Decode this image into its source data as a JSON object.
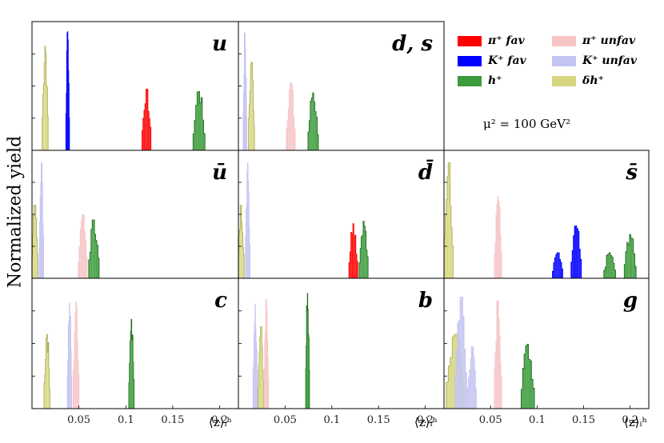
{
  "ylabel": "Normalized yield",
  "scale_label": "μ² = 100 GeV²",
  "legend": [
    {
      "label": "π⁺ fav",
      "color": "#ff0000"
    },
    {
      "label": "π⁺ unfav",
      "color": "#f6c4c4"
    },
    {
      "label": "K⁺ fav",
      "color": "#0000ff"
    },
    {
      "label": "K⁺ unfav",
      "color": "#c4c4f2"
    },
    {
      "label": "h⁺",
      "color": "#3c9b3c"
    },
    {
      "label": "δh⁺",
      "color": "#d6d680"
    }
  ],
  "chart_data": {
    "type": "histogram",
    "xlabel": "⟨z⟩ᵢʰ",
    "xlim": [
      0,
      0.22
    ],
    "x_ticks": [
      "0.05",
      "0.1",
      "0.15",
      "0.2"
    ],
    "grid": false,
    "legend_position": "top-right",
    "panels": [
      {
        "flavor": "u",
        "row": 0,
        "col": 0,
        "series": [
          {
            "name": "δh⁺",
            "center": 0.014,
            "width": 0.002,
            "height": 0.85
          },
          {
            "name": "K⁺ fav",
            "center": 0.038,
            "width": 0.0012,
            "height": 0.97
          },
          {
            "name": "π⁺ fav",
            "center": 0.122,
            "width": 0.003,
            "height": 0.5
          },
          {
            "name": "h⁺",
            "center": 0.178,
            "width": 0.004,
            "height": 0.48
          }
        ]
      },
      {
        "flavor": "d, s",
        "row": 0,
        "col": 1,
        "series": [
          {
            "name": "K⁺ unfav",
            "center": 0.007,
            "width": 0.0012,
            "height": 0.96
          },
          {
            "name": "δh⁺",
            "center": 0.014,
            "width": 0.002,
            "height": 0.72
          },
          {
            "name": "π⁺ unfav",
            "center": 0.056,
            "width": 0.003,
            "height": 0.55
          },
          {
            "name": "h⁺",
            "center": 0.08,
            "width": 0.0035,
            "height": 0.47
          }
        ]
      },
      {
        "flavor": "ū",
        "row": 1,
        "col": 0,
        "series": [
          {
            "name": "δh⁺",
            "center": 0.003,
            "width": 0.002,
            "height": 0.6
          },
          {
            "name": "K⁺ unfav",
            "center": 0.01,
            "width": 0.0015,
            "height": 0.95
          },
          {
            "name": "π⁺ unfav",
            "center": 0.054,
            "width": 0.003,
            "height": 0.52
          },
          {
            "name": "h⁺",
            "center": 0.066,
            "width": 0.0035,
            "height": 0.48
          }
        ]
      },
      {
        "flavor": "d̄",
        "row": 1,
        "col": 1,
        "series": [
          {
            "name": "δh⁺",
            "center": 0.003,
            "width": 0.002,
            "height": 0.6
          },
          {
            "name": "K⁺ unfav",
            "center": 0.01,
            "width": 0.0015,
            "height": 0.95
          },
          {
            "name": "π⁺ fav",
            "center": 0.123,
            "width": 0.003,
            "height": 0.45
          },
          {
            "name": "h⁺",
            "center": 0.134,
            "width": 0.003,
            "height": 0.47
          }
        ]
      },
      {
        "flavor": "s̄",
        "row": 1,
        "col": 2,
        "series": [
          {
            "name": "δh⁺",
            "center": 0.005,
            "width": 0.003,
            "height": 0.95
          },
          {
            "name": "π⁺ unfav",
            "center": 0.058,
            "width": 0.0025,
            "height": 0.67
          },
          {
            "name": "K⁺ fav",
            "center": 0.122,
            "width": 0.0035,
            "height": 0.21
          },
          {
            "name": "K⁺ fav",
            "center": 0.142,
            "width": 0.0035,
            "height": 0.43
          },
          {
            "name": "h⁺",
            "center": 0.178,
            "width": 0.004,
            "height": 0.21
          },
          {
            "name": "h⁺",
            "center": 0.2,
            "width": 0.004,
            "height": 0.36
          }
        ]
      },
      {
        "flavor": "c",
        "row": 2,
        "col": 0,
        "series": [
          {
            "name": "δh⁺",
            "center": 0.016,
            "width": 0.002,
            "height": 0.6
          },
          {
            "name": "K⁺ unfav",
            "center": 0.04,
            "width": 0.0015,
            "height": 0.85
          },
          {
            "name": "π⁺ unfav",
            "center": 0.047,
            "width": 0.002,
            "height": 0.86
          },
          {
            "name": "h⁺",
            "center": 0.106,
            "width": 0.0018,
            "height": 0.72
          }
        ]
      },
      {
        "flavor": "b",
        "row": 2,
        "col": 1,
        "series": [
          {
            "name": "K⁺ unfav",
            "center": 0.018,
            "width": 0.0015,
            "height": 0.84
          },
          {
            "name": "δh⁺",
            "center": 0.024,
            "width": 0.002,
            "height": 0.66
          },
          {
            "name": "π⁺ unfav",
            "center": 0.03,
            "width": 0.0015,
            "height": 0.88
          },
          {
            "name": "h⁺",
            "center": 0.074,
            "width": 0.0013,
            "height": 0.93
          }
        ]
      },
      {
        "flavor": "g",
        "row": 2,
        "col": 2,
        "series": [
          {
            "name": "δh⁺",
            "center": 0.012,
            "width": 0.006,
            "height": 0.6
          },
          {
            "name": "K⁺ unfav",
            "center": 0.018,
            "width": 0.004,
            "height": 0.9
          },
          {
            "name": "K⁺ unfav",
            "center": 0.03,
            "width": 0.003,
            "height": 0.5
          },
          {
            "name": "π⁺ unfav",
            "center": 0.058,
            "width": 0.0025,
            "height": 0.87
          },
          {
            "name": "h⁺",
            "center": 0.09,
            "width": 0.0045,
            "height": 0.52
          }
        ]
      }
    ]
  }
}
